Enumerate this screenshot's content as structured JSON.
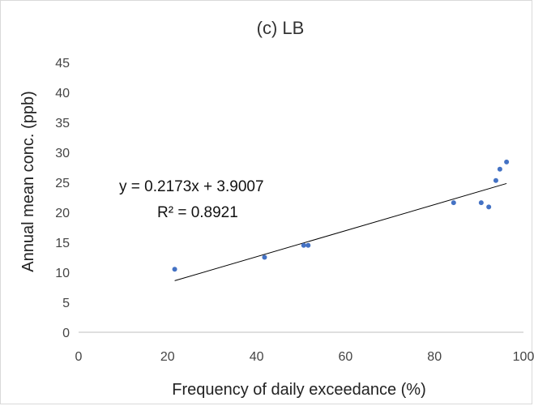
{
  "chart_data": {
    "type": "scatter",
    "title": "(c) LB",
    "xlabel": "Frequency of daily exceedance (%)",
    "ylabel": "Annual mean conc. (ppb)",
    "xlim": [
      0,
      100
    ],
    "ylim": [
      0,
      45
    ],
    "xticks": [
      "0",
      "20",
      "40",
      "60",
      "80",
      "100"
    ],
    "yticks": [
      "0",
      "5",
      "10",
      "15",
      "20",
      "25",
      "30",
      "35",
      "40",
      "45"
    ],
    "grid": false,
    "point_color": "#4472c4",
    "trendline_color": "#000000",
    "points": [
      {
        "x": 21.6,
        "y": 10.5
      },
      {
        "x": 41.8,
        "y": 12.5
      },
      {
        "x": 50.6,
        "y": 14.5
      },
      {
        "x": 51.6,
        "y": 14.5
      },
      {
        "x": 84.3,
        "y": 21.6
      },
      {
        "x": 90.5,
        "y": 21.6
      },
      {
        "x": 92.2,
        "y": 20.9
      },
      {
        "x": 93.8,
        "y": 25.3
      },
      {
        "x": 94.7,
        "y": 27.2
      },
      {
        "x": 96.2,
        "y": 28.4
      }
    ],
    "trendline": {
      "slope": 0.2173,
      "intercept": 3.9007,
      "x_range": [
        21.6,
        96.2
      ],
      "equation": "y = 0.2173x + 3.9007",
      "r_squared": "R² = 0.8921"
    }
  }
}
